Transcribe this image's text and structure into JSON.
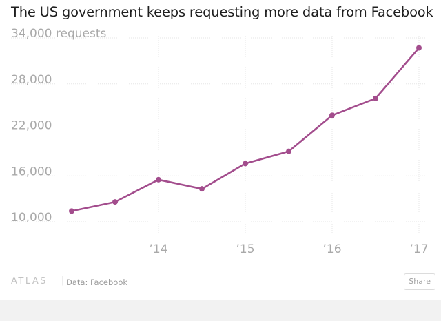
{
  "title": "The US government keeps requesting more data from Facebook",
  "footer": {
    "logo": "ATLAS",
    "separator": "|",
    "source": "Data: Facebook",
    "share_label": "Share"
  },
  "colors": {
    "line": "#a34d8d",
    "grid": "#e6e6e6",
    "tick_text": "#a9a9a9"
  },
  "chart_data": {
    "type": "line",
    "title": "The US government keeps requesting more data from Facebook",
    "xlabel": "",
    "ylabel": "",
    "x": [
      2013.0,
      2013.5,
      2014.0,
      2014.5,
      2015.0,
      2015.5,
      2016.0,
      2016.5,
      2017.0
    ],
    "series": [
      {
        "values": [
          11400,
          12600,
          15500,
          14300,
          17600,
          19200,
          23900,
          26100,
          32700
        ]
      }
    ],
    "y_ticks": [
      {
        "value": 34000,
        "label": "34,000 requests"
      },
      {
        "value": 28000,
        "label": "28,000"
      },
      {
        "value": 22000,
        "label": "22,000"
      },
      {
        "value": 16000,
        "label": "16,000"
      },
      {
        "value": 10000,
        "label": "10,000"
      }
    ],
    "x_ticks": [
      {
        "value": 2014,
        "label": "’14"
      },
      {
        "value": 2015,
        "label": "’15"
      },
      {
        "value": 2016,
        "label": "’16"
      },
      {
        "value": 2017,
        "label": "’17"
      }
    ],
    "ylim": [
      10000,
      34000
    ],
    "grid": true,
    "legend": "none"
  }
}
